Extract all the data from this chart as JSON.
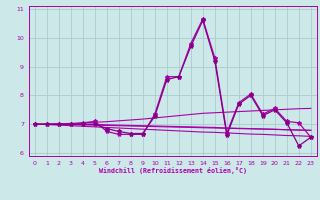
{
  "xlabel": "Windchill (Refroidissement éolien,°C)",
  "bg_color": "#cce8e8",
  "grid_color": "#aacccc",
  "line_color": "#aa00aa",
  "line_color2": "#880088",
  "xlim": [
    -0.5,
    23.5
  ],
  "ylim": [
    5.9,
    11.1
  ],
  "xticks": [
    0,
    1,
    2,
    3,
    4,
    5,
    6,
    7,
    8,
    9,
    10,
    11,
    12,
    13,
    14,
    15,
    16,
    17,
    18,
    19,
    20,
    21,
    22,
    23
  ],
  "yticks": [
    6,
    7,
    8,
    9,
    10,
    11
  ],
  "series_main": [
    7.0,
    7.0,
    7.0,
    7.0,
    7.05,
    7.1,
    6.75,
    6.65,
    6.65,
    6.65,
    7.35,
    8.65,
    8.65,
    9.8,
    10.65,
    9.3,
    6.7,
    7.75,
    8.05,
    7.35,
    7.55,
    7.1,
    7.05,
    6.55
  ],
  "series_alt": [
    7.0,
    7.0,
    7.0,
    7.0,
    7.0,
    7.0,
    6.85,
    6.75,
    6.68,
    6.68,
    7.28,
    8.55,
    8.65,
    9.7,
    10.6,
    9.2,
    6.62,
    7.7,
    8.0,
    7.3,
    7.5,
    7.05,
    6.25,
    6.55
  ],
  "trend_up1": [
    7.0,
    7.0,
    7.02,
    7.03,
    7.05,
    7.07,
    7.09,
    7.12,
    7.15,
    7.18,
    7.22,
    7.26,
    7.3,
    7.34,
    7.38,
    7.4,
    7.42,
    7.44,
    7.46,
    7.48,
    7.5,
    7.52,
    7.54,
    7.55
  ],
  "trend_flat1": [
    7.0,
    7.0,
    7.0,
    7.0,
    7.0,
    7.0,
    6.98,
    6.97,
    6.96,
    6.95,
    6.94,
    6.93,
    6.92,
    6.91,
    6.9,
    6.89,
    6.87,
    6.86,
    6.85,
    6.84,
    6.83,
    6.81,
    6.8,
    6.79
  ],
  "trend_flat2": [
    7.0,
    7.0,
    7.0,
    6.99,
    6.98,
    6.97,
    6.96,
    6.95,
    6.94,
    6.93,
    6.92,
    6.91,
    6.9,
    6.89,
    6.88,
    6.87,
    6.86,
    6.85,
    6.84,
    6.83,
    6.82,
    6.81,
    6.8,
    6.79
  ],
  "trend_down1": [
    7.0,
    6.99,
    6.97,
    6.95,
    6.93,
    6.91,
    6.89,
    6.87,
    6.85,
    6.83,
    6.81,
    6.79,
    6.77,
    6.75,
    6.73,
    6.72,
    6.7,
    6.68,
    6.66,
    6.65,
    6.63,
    6.61,
    6.6,
    6.58
  ]
}
